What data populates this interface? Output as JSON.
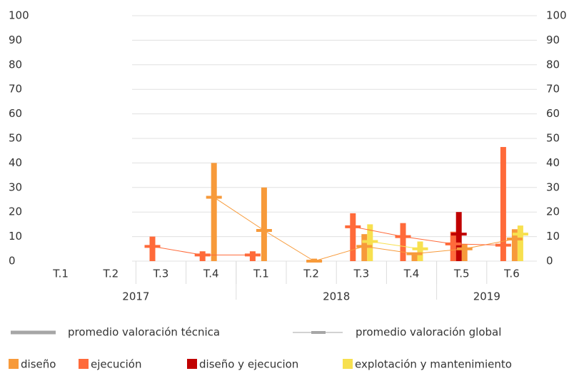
{
  "chart_data": {
    "type": "bar",
    "categories": [
      "T.1",
      "T.2",
      "T.3",
      "T.4",
      "T.1",
      "T.2",
      "T.3",
      "T.4",
      "T.5",
      "T.6"
    ],
    "groups": [
      {
        "label": "2017",
        "span": 4
      },
      {
        "label": "2018",
        "span": 4
      },
      {
        "label": "2019",
        "span": 2
      }
    ],
    "series": [
      {
        "name": "diseño",
        "color": "#f79a3a",
        "values": [
          null,
          null,
          null,
          40,
          30,
          1,
          11,
          3,
          7,
          13
        ],
        "averages": [
          null,
          null,
          null,
          26,
          12.5,
          0,
          6,
          3,
          5,
          9
        ]
      },
      {
        "name": "ejecución",
        "color": "#ff6a3a",
        "values": [
          null,
          null,
          10,
          4,
          4,
          null,
          19.5,
          15.5,
          12,
          46.5
        ],
        "averages": [
          null,
          null,
          6,
          2.5,
          2.5,
          null,
          14,
          10,
          7,
          6.5
        ]
      },
      {
        "name": "diseño y ejecucion",
        "color": "#c00000",
        "values": [
          null,
          null,
          null,
          null,
          null,
          null,
          null,
          null,
          20,
          null
        ],
        "averages": [
          null,
          null,
          null,
          null,
          null,
          null,
          null,
          null,
          11,
          null
        ]
      },
      {
        "name": "explotación y mantenimiento",
        "color": "#f7e04f",
        "values": [
          null,
          null,
          null,
          null,
          null,
          null,
          15,
          8,
          null,
          14.5
        ],
        "averages": [
          null,
          null,
          null,
          null,
          null,
          null,
          8,
          5,
          null,
          11
        ]
      }
    ],
    "line_legend": [
      "promedio valoración técnica",
      "promedio valoración global"
    ],
    "ylim": [
      0,
      100
    ],
    "yticks": [
      0,
      10,
      20,
      30,
      40,
      50,
      60,
      70,
      80,
      90,
      100
    ],
    "y2lim": [
      0,
      100
    ],
    "y2ticks": [
      0,
      10,
      20,
      30,
      40,
      50,
      60,
      70,
      80,
      90,
      100
    ],
    "grid": true
  }
}
